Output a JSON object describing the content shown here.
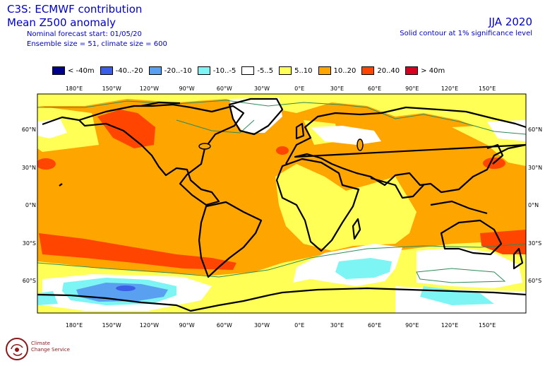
{
  "header": {
    "title_line1": "C3S: ECMWF contribution",
    "title_line2": "Mean Z500 anomaly",
    "nominal_start": "Nominal forecast start: 01/05/20",
    "ensemble": "Ensemble size = 51, climate size = 600",
    "season": "JJA 2020",
    "contour_note": "Solid contour at 1% significance level"
  },
  "legend": [
    {
      "label": "< -40m",
      "color": "#00008b"
    },
    {
      "label": "-40..-20",
      "color": "#3b5ee8"
    },
    {
      "label": "-20..-10",
      "color": "#5aa0f0"
    },
    {
      "label": "-10..-5",
      "color": "#7df5f5"
    },
    {
      "label": "-5..5",
      "color": "#ffffff"
    },
    {
      "label": "5..10",
      "color": "#ffff55"
    },
    {
      "label": "10..20",
      "color": "#ffa500"
    },
    {
      "label": "20..40",
      "color": "#ff4500"
    },
    {
      "label": "> 40m",
      "color": "#d7001e"
    }
  ],
  "map": {
    "lon_labels": [
      "180°E",
      "150°W",
      "120°W",
      "90°W",
      "60°W",
      "30°W",
      "0°E",
      "30°E",
      "60°E",
      "90°E",
      "120°E",
      "150°E"
    ],
    "lat_labels": [
      "60°N",
      "30°N",
      "0°N",
      "30°S",
      "60°S"
    ],
    "background_color": "#ffa500",
    "icons": [
      "coastline",
      "significance-contour"
    ]
  },
  "logo": {
    "line1": "Climate",
    "line2": "Change Service"
  }
}
